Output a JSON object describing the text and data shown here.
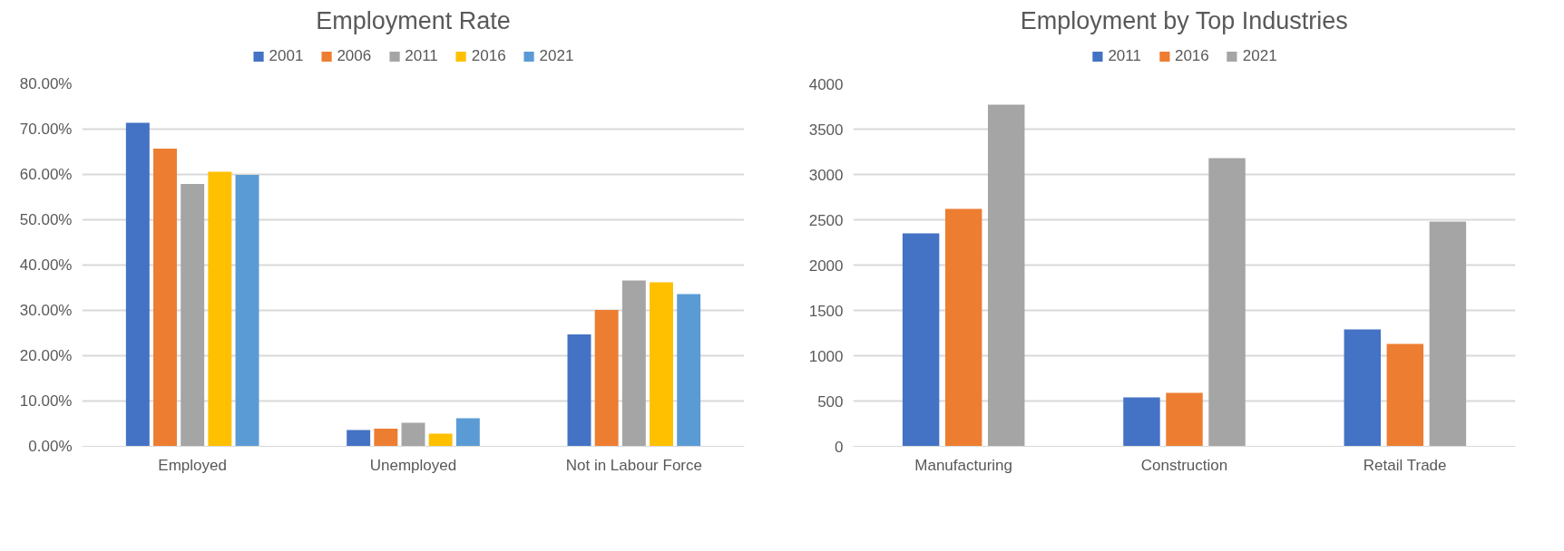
{
  "chart_data": [
    {
      "type": "bar",
      "title": "Employment Rate",
      "categories": [
        "Employed",
        "Unemployed",
        "Not in Labour Force"
      ],
      "series": [
        {
          "name": "2001",
          "color": "#4472c4",
          "values": [
            71.4,
            3.6,
            24.7
          ]
        },
        {
          "name": "2006",
          "color": "#ed7d31",
          "values": [
            65.7,
            3.9,
            30.1
          ]
        },
        {
          "name": "2011",
          "color": "#a5a5a5",
          "values": [
            57.9,
            5.2,
            36.6
          ]
        },
        {
          "name": "2016",
          "color": "#ffc000",
          "values": [
            60.6,
            2.8,
            36.2
          ]
        },
        {
          "name": "2021",
          "color": "#5b9bd5",
          "values": [
            59.9,
            6.2,
            33.6
          ]
        }
      ],
      "ylim": [
        0,
        80
      ],
      "yticks": [
        {
          "value": 0,
          "label": "0.00%"
        },
        {
          "value": 10,
          "label": "10.00%"
        },
        {
          "value": 20,
          "label": "20.00%"
        },
        {
          "value": 30,
          "label": "30.00%"
        },
        {
          "value": 40,
          "label": "40.00%"
        },
        {
          "value": 50,
          "label": "50.00%"
        },
        {
          "value": 60,
          "label": "60.00%"
        },
        {
          "value": 70,
          "label": "70.00%"
        },
        {
          "value": 80,
          "label": "80.00%"
        }
      ],
      "grid": "y",
      "legend": "top"
    },
    {
      "type": "bar",
      "title": "Employment by Top Industries",
      "categories": [
        "Manufacturing",
        "Construction",
        "Retail Trade"
      ],
      "series": [
        {
          "name": "2011",
          "color": "#4472c4",
          "values": [
            2350,
            540,
            1290
          ]
        },
        {
          "name": "2016",
          "color": "#ed7d31",
          "values": [
            2620,
            590,
            1130
          ]
        },
        {
          "name": "2021",
          "color": "#a5a5a5",
          "values": [
            3770,
            3180,
            2480
          ]
        }
      ],
      "ylim": [
        0,
        4000
      ],
      "yticks": [
        0,
        500,
        1000,
        1500,
        2000,
        2500,
        3000,
        3500,
        4000
      ],
      "grid": "y",
      "legend": "top"
    }
  ]
}
